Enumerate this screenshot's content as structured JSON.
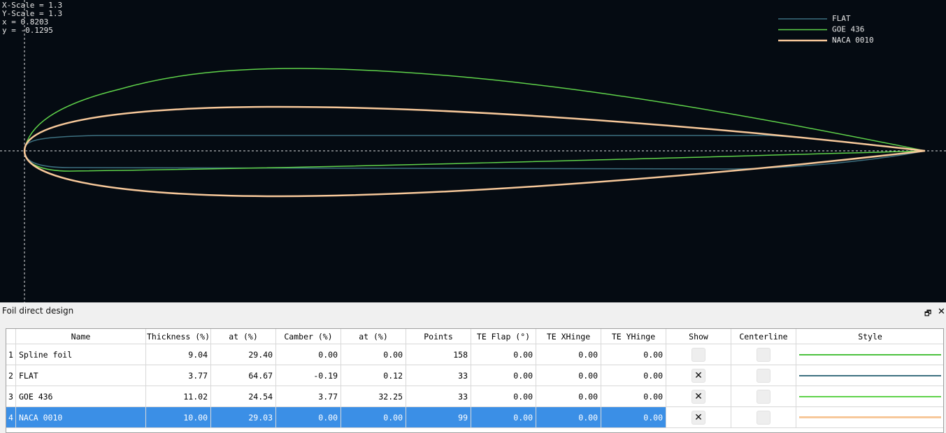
{
  "view": {
    "overlay": [
      "X-Scale = 1.3",
      "Y-Scale = 1.3",
      "x = 0.8203",
      "y = -0.1295"
    ],
    "legend": [
      {
        "name": "FLAT",
        "color": "#3d7080"
      },
      {
        "name": "GOE 436",
        "color": "#5fd34a"
      },
      {
        "name": "NACA 0010",
        "color": "#f7c89a"
      }
    ]
  },
  "panel": {
    "title": "Foil direct design"
  },
  "table": {
    "columns": [
      "Name",
      "Thickness (%)",
      "at (%)",
      "Camber (%)",
      "at (%)",
      "Points",
      "TE Flap (°)",
      "TE XHinge",
      "TE YHinge",
      "Show",
      "Centerline",
      "Style"
    ],
    "rows": [
      {
        "index": "1",
        "cells": [
          "Spline foil",
          "9.04",
          "29.40",
          "0.00",
          "0.00",
          "158",
          "0.00",
          "0.00",
          "0.00"
        ],
        "show": false,
        "centerline": false,
        "style_color": "#4cc23f"
      },
      {
        "index": "2",
        "cells": [
          "FLAT",
          "3.77",
          "64.67",
          "-0.19",
          "0.12",
          "33",
          "0.00",
          "0.00",
          "0.00"
        ],
        "show": true,
        "centerline": false,
        "style_color": "#3d7080"
      },
      {
        "index": "3",
        "cells": [
          "GOE 436",
          "11.02",
          "24.54",
          "3.77",
          "32.25",
          "33",
          "0.00",
          "0.00",
          "0.00"
        ],
        "show": true,
        "centerline": false,
        "style_color": "#5fd34a"
      },
      {
        "index": "4",
        "cells": [
          "NACA 0010",
          "10.00",
          "29.03",
          "0.00",
          "0.00",
          "99",
          "0.00",
          "0.00",
          "0.00"
        ],
        "show": true,
        "centerline": false,
        "style_color": "#f7c89a",
        "selected": true
      }
    ]
  }
}
